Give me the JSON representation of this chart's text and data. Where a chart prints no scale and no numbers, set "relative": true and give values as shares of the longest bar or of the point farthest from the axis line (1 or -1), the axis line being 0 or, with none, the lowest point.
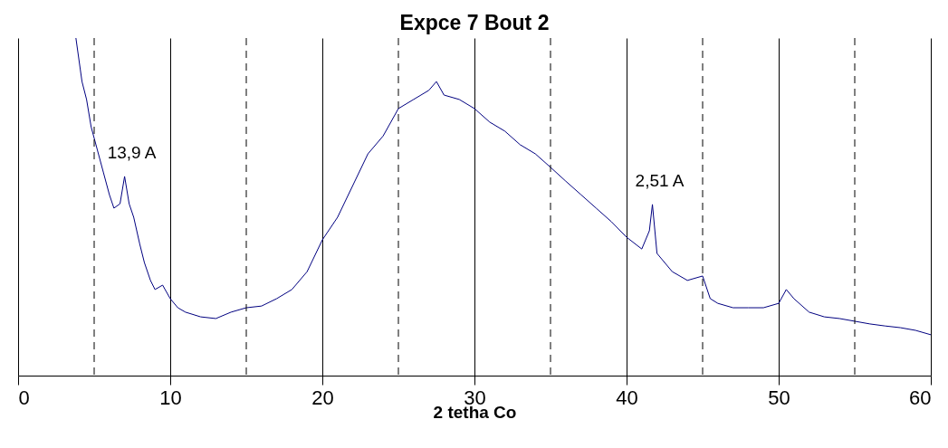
{
  "chart_data": {
    "type": "line",
    "title": "Expce 7 Bout 2",
    "xlabel": "2 tetha Co",
    "relative": true,
    "xlim": [
      0,
      60
    ],
    "xticks": [
      0,
      10,
      20,
      30,
      40,
      50,
      60
    ],
    "grid": "x",
    "marker": "none",
    "line_style": "solid",
    "series": [
      {
        "color": "#000080",
        "x": [
          3.8,
          4.2,
          4.5,
          4.8,
          5.2,
          5.6,
          6.0,
          6.3,
          6.7,
          7.0,
          7.3,
          7.6,
          8.0,
          8.3,
          8.7,
          9.0,
          9.5,
          10,
          10.5,
          11,
          12,
          13,
          14,
          15,
          16,
          17,
          18,
          19,
          20,
          21,
          22,
          23,
          24,
          25,
          26,
          27,
          27.5,
          28,
          29,
          30,
          31,
          32,
          33,
          34,
          35,
          36,
          37,
          38,
          39,
          40,
          41,
          41.5,
          41.7,
          42.0,
          43,
          44,
          45,
          45.5,
          46,
          47,
          48,
          49,
          50,
          50.5,
          51,
          52,
          53,
          54,
          55,
          56,
          57,
          58,
          59,
          60
        ],
        "values": [
          1.0,
          0.871,
          0.818,
          0.737,
          0.67,
          0.603,
          0.536,
          0.496,
          0.509,
          0.59,
          0.509,
          0.469,
          0.389,
          0.335,
          0.282,
          0.255,
          0.268,
          0.228,
          0.201,
          0.188,
          0.174,
          0.169,
          0.188,
          0.201,
          0.206,
          0.228,
          0.255,
          0.308,
          0.402,
          0.469,
          0.563,
          0.657,
          0.71,
          0.791,
          0.818,
          0.845,
          0.871,
          0.831,
          0.818,
          0.791,
          0.751,
          0.724,
          0.684,
          0.657,
          0.617,
          0.576,
          0.536,
          0.496,
          0.456,
          0.41,
          0.375,
          0.429,
          0.507,
          0.362,
          0.308,
          0.282,
          0.295,
          0.228,
          0.214,
          0.201,
          0.201,
          0.201,
          0.214,
          0.255,
          0.228,
          0.188,
          0.174,
          0.169,
          0.161,
          0.153,
          0.147,
          0.142,
          0.134,
          0.121
        ]
      }
    ],
    "ref_lines": [
      {
        "axis": "x",
        "value": 5,
        "line_style": "dashed",
        "color": "#000000"
      },
      {
        "axis": "x",
        "value": 15,
        "line_style": "dashed",
        "color": "#000000"
      },
      {
        "axis": "x",
        "value": 25,
        "line_style": "dashed",
        "color": "#000000"
      },
      {
        "axis": "x",
        "value": 35,
        "line_style": "dashed",
        "color": "#000000"
      },
      {
        "axis": "x",
        "value": 45,
        "line_style": "dashed",
        "color": "#000000"
      },
      {
        "axis": "x",
        "value": 55,
        "line_style": "dashed",
        "color": "#000000"
      }
    ],
    "annotations": [
      {
        "text": "13,9 A",
        "x": 7.0,
        "y": 0.59
      },
      {
        "text": "2,51 A",
        "x": 41.7,
        "y": 0.507
      }
    ]
  }
}
